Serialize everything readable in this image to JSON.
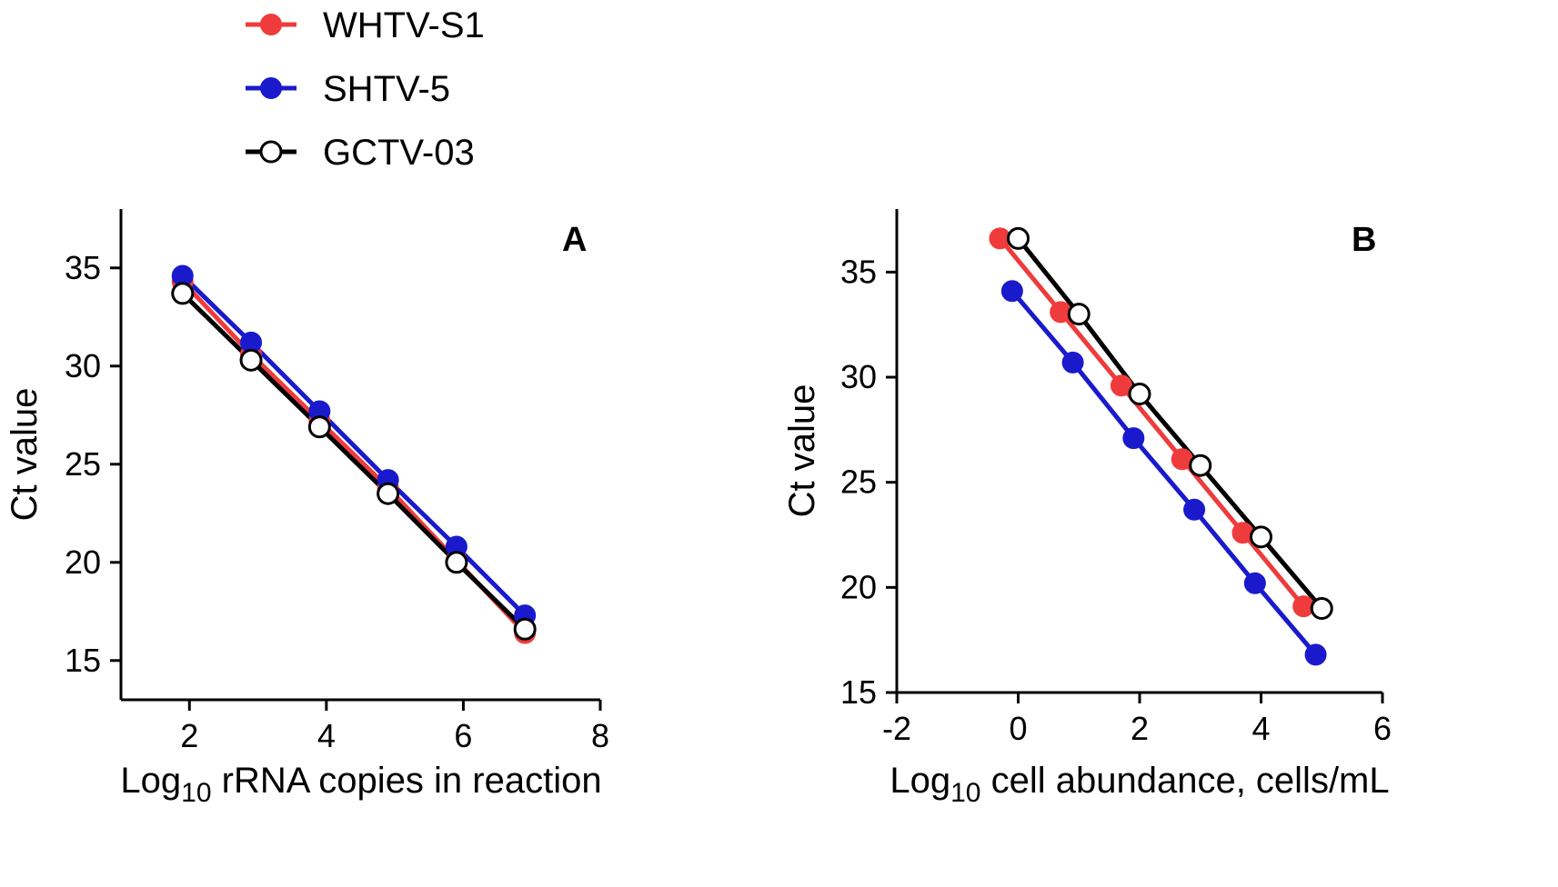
{
  "colors": {
    "WHTV-S1": "#ef3b3b",
    "SHTV-5": "#1a1acc",
    "GCTV-03": "#000000"
  },
  "legend": [
    {
      "name": "WHTV-S1",
      "marker": "filled",
      "color": "#ef3b3b"
    },
    {
      "name": "SHTV-5",
      "marker": "filled",
      "color": "#1a1acc"
    },
    {
      "name": "GCTV-03",
      "marker": "open",
      "color": "#000000"
    }
  ],
  "chart_data": [
    {
      "type": "line",
      "panel_label": "A",
      "xlabel_main": "Log",
      "xlabel_sub": "10",
      "xlabel_rest": " rRNA copies in reaction",
      "ylabel": "Ct value",
      "xlim": [
        1,
        8
      ],
      "ylim": [
        13,
        38
      ],
      "xticks": [
        2,
        4,
        6,
        8
      ],
      "yticks": [
        15,
        20,
        25,
        30,
        35
      ],
      "series": [
        {
          "name": "WHTV-S1",
          "x": [
            1.9,
            2.9,
            3.9,
            4.9,
            5.9,
            6.9
          ],
          "values": [
            34.3,
            30.6,
            27.2,
            23.8,
            20.1,
            16.4
          ]
        },
        {
          "name": "SHTV-5",
          "x": [
            1.9,
            2.9,
            3.9,
            4.9,
            5.9,
            6.9
          ],
          "values": [
            34.6,
            31.2,
            27.7,
            24.2,
            20.8,
            17.3
          ]
        },
        {
          "name": "GCTV-03",
          "x": [
            1.9,
            2.9,
            3.9,
            4.9,
            5.9,
            6.9
          ],
          "values": [
            33.7,
            30.3,
            26.9,
            23.5,
            20.0,
            16.6
          ]
        }
      ]
    },
    {
      "type": "line",
      "panel_label": "B",
      "xlabel_main": "Log",
      "xlabel_sub": "10",
      "xlabel_rest": " cell abundance, cells/mL",
      "ylabel": "Ct value",
      "xlim": [
        -2,
        6
      ],
      "ylim": [
        15,
        38
      ],
      "xticks": [
        -2,
        0,
        2,
        4,
        6
      ],
      "yticks": [
        15,
        20,
        25,
        30,
        35
      ],
      "series": [
        {
          "name": "WHTV-S1",
          "x": [
            -0.3,
            0.7,
            1.7,
            2.7,
            3.7,
            4.7
          ],
          "values": [
            36.6,
            33.1,
            29.6,
            26.1,
            22.6,
            19.1
          ]
        },
        {
          "name": "SHTV-5",
          "x": [
            -0.1,
            0.9,
            1.9,
            2.9,
            3.9,
            4.9
          ],
          "values": [
            34.1,
            30.7,
            27.1,
            23.7,
            20.2,
            16.8
          ]
        },
        {
          "name": "GCTV-03",
          "x": [
            0.0,
            1.0,
            2.0,
            3.0,
            4.0,
            5.0
          ],
          "values": [
            36.6,
            33.0,
            29.2,
            25.8,
            22.4,
            19.0
          ]
        }
      ]
    }
  ]
}
